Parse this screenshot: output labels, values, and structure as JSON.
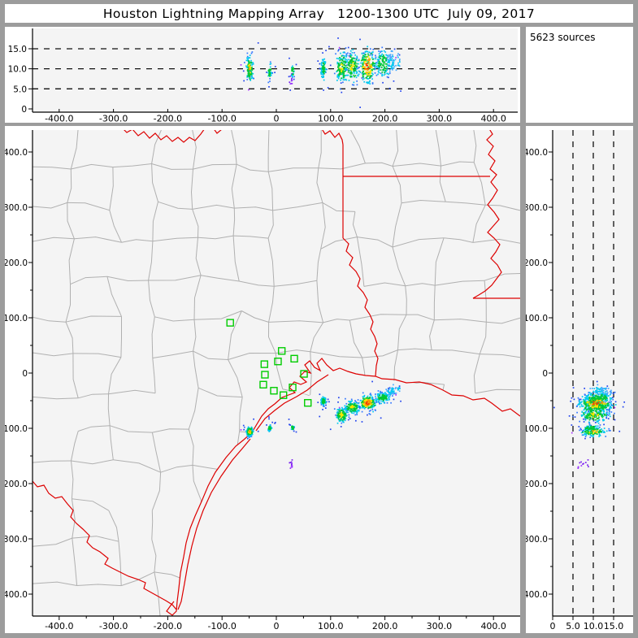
{
  "title": "Houston Lightning Mapping Array   1200-1300 UTC  July 09, 2017",
  "source_count_label": "5623 sources",
  "colors": {
    "frame_gray": "#9c9c9c",
    "panel_white": "#ffffff",
    "plot_background": "#f4f4f4",
    "county_line": "#b0b0b0",
    "state_border_red": "#dd0000",
    "station_green": "#00cc00",
    "axis_black": "#000000",
    "point_blue": "#2244ee",
    "point_mid_blue": "#3377ff",
    "point_cyan": "#00c8f0",
    "point_green": "#00c832",
    "point_yellow": "#ffe600",
    "point_orange": "#ff9900",
    "point_red": "#ff3200",
    "point_purple": "#9933ff"
  },
  "chart_data": {
    "type": "scatter",
    "description": "Lightning Mapping Array source locations: top panel altitude(km) vs East-West km, main panel plan view (EW vs NS km), right panel NS km vs altitude(km)",
    "ew_axis": {
      "range": [
        -450,
        450
      ],
      "tick_values": [
        -400,
        -300,
        -200,
        -100,
        0,
        100,
        200,
        300,
        400
      ],
      "tick_labels": [
        "-400.0",
        "-300.0",
        "-200.0",
        "-100.0",
        "0",
        "100.0",
        "200.0",
        "300.0",
        "400.0"
      ]
    },
    "ns_axis": {
      "range": [
        -440,
        440
      ],
      "tick_values": [
        400,
        300,
        200,
        100,
        0,
        -100,
        -200,
        -300,
        -400
      ],
      "tick_labels": [
        "400.0",
        "300.0",
        "200.0",
        "100.0",
        "0",
        "-100.0",
        "-200.0",
        "-300.0",
        "-400.0"
      ]
    },
    "alt_axis": {
      "range": [
        0,
        20
      ],
      "tick_values": [
        0,
        5,
        10,
        15
      ],
      "tick_labels": [
        "0",
        "5.0",
        "10.0",
        "15.0"
      ],
      "dashed_gridlines_km": [
        5,
        10,
        15
      ]
    },
    "grid": "dashed gridlines on altitude panels only",
    "legend_position": "none",
    "stations_km": [
      [
        -85,
        91
      ],
      [
        -22,
        16
      ],
      [
        10,
        40
      ],
      [
        33,
        26
      ],
      [
        3,
        21
      ],
      [
        -21,
        -3
      ],
      [
        51,
        -1.5
      ],
      [
        -24,
        -21
      ],
      [
        30,
        -26
      ],
      [
        -4.5,
        -32
      ],
      [
        13,
        -40
      ],
      [
        58,
        -54
      ]
    ],
    "clusters": [
      {
        "name": "coastal-west",
        "ew": -49,
        "ns": -106,
        "alt_center": 10.0,
        "alt_spread": 1.6,
        "sx": 3.0,
        "sy": 4.0,
        "n": 120,
        "core": "orange"
      },
      {
        "name": "coastal-mid",
        "ew": -12,
        "ns": -100,
        "alt_center": 9.5,
        "alt_spread": 1.1,
        "sx": 2.0,
        "sy": 3.0,
        "n": 45,
        "core": "green"
      },
      {
        "name": "coastal-east",
        "ew": 30,
        "ns": -99,
        "alt_center": 9.5,
        "alt_spread": 1.0,
        "sx": 1.5,
        "sy": 3.0,
        "n": 28,
        "core": "green"
      },
      {
        "name": "far-south-speck",
        "ew": 28,
        "ns": -168,
        "alt_center": 7.0,
        "alt_spread": 0.8,
        "sx": 1.5,
        "sy": 4.0,
        "n": 12,
        "core": "purple"
      },
      {
        "name": "gulf-1",
        "ew": 87,
        "ns": -51,
        "alt_center": 10.0,
        "alt_spread": 1.3,
        "sx": 2.5,
        "sy": 4.0,
        "n": 90,
        "core": "green"
      },
      {
        "name": "gulf-2",
        "ew": 120,
        "ns": -76,
        "alt_center": 10.3,
        "alt_spread": 1.7,
        "sx": 5.0,
        "sy": 6.0,
        "n": 160,
        "core": "yellow"
      },
      {
        "name": "gulf-3",
        "ew": 140,
        "ns": -62,
        "alt_center": 10.5,
        "alt_spread": 1.8,
        "sx": 6.0,
        "sy": 5.0,
        "n": 160,
        "core": "yellow"
      },
      {
        "name": "gulf-main",
        "ew": 168,
        "ns": -54,
        "alt_center": 10.8,
        "alt_spread": 2.0,
        "sx": 7.0,
        "sy": 6.0,
        "n": 220,
        "core": "red"
      },
      {
        "name": "gulf-4",
        "ew": 196,
        "ns": -44,
        "alt_center": 11.2,
        "alt_spread": 1.8,
        "sx": 7.0,
        "sy": 5.0,
        "n": 130,
        "core": "green"
      },
      {
        "name": "gulf-ne-1",
        "ew": 212,
        "ns": -33,
        "alt_center": 11.5,
        "alt_spread": 1.4,
        "sx": 4.0,
        "sy": 4.0,
        "n": 50,
        "core": "cyan"
      },
      {
        "name": "gulf-ne-2",
        "ew": 224,
        "ns": -28,
        "alt_center": 11.5,
        "alt_spread": 1.0,
        "sx": 2.5,
        "sy": 2.0,
        "n": 14,
        "core": "cyan"
      }
    ]
  }
}
